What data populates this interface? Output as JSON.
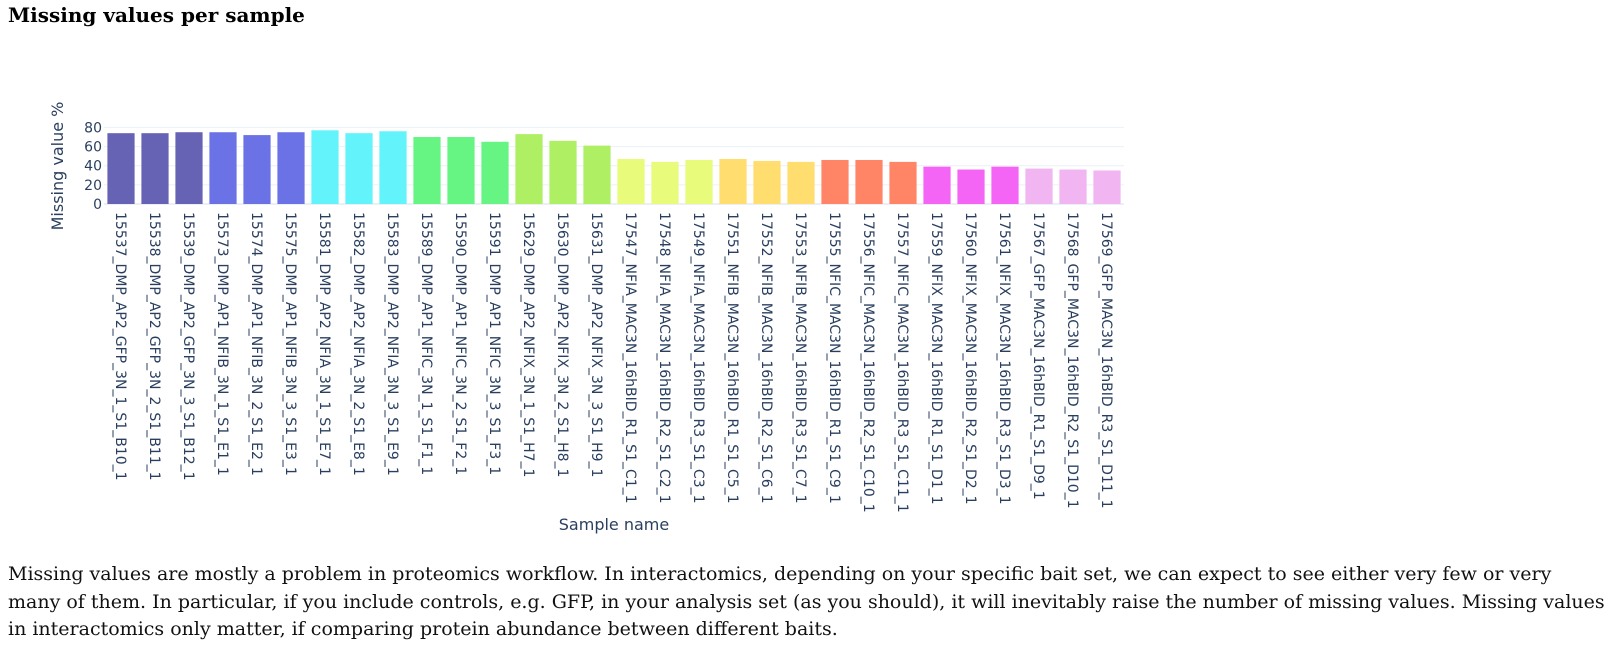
{
  "heading": "Missing values per sample",
  "chart_data": {
    "type": "bar",
    "categories": [
      "15537_DMP_AP2_GFP_3N_1_S1_B10_1",
      "15538_DMP_AP2_GFP_3N_2_S1_B11_1",
      "15539_DMP_AP2_GFP_3N_3_S1_B12_1",
      "15573_DMP_AP1_NFIB_3N_1_S1_E1_1",
      "15574_DMP_AP1_NFIB_3N_2_S1_E2_1",
      "15575_DMP_AP1_NFIB_3N_3_S1_E3_1",
      "15581_DMP_AP2_NFIA_3N_1_S1_E7_1",
      "15582_DMP_AP2_NFIA_3N_2_S1_E8_1",
      "15583_DMP_AP2_NFIA_3N_3_S1_E9_1",
      "15589_DMP_AP1_NFIC_3N_1_S1_F1_1",
      "15590_DMP_AP1_NFIC_3N_2_S1_F2_1",
      "15591_DMP_AP1_NFIC_3N_3_S1_F3_1",
      "15629_DMP_AP2_NFIX_3N_1_S1_H7_1",
      "15630_DMP_AP2_NFIX_3N_2_S1_H8_1",
      "15631_DMP_AP2_NFIX_3N_3_S1_H9_1",
      "17547_NFIA_MAC3N_16hBID_R1_S1_C1_1",
      "17548_NFIA_MAC3N_16hBID_R2_S1_C2_1",
      "17549_NFIA_MAC3N_16hBID_R3_S1_C3_1",
      "17551_NFIB_MAC3N_16hBID_R1_S1_C5_1",
      "17552_NFIB_MAC3N_16hBID_R2_S1_C6_1",
      "17553_NFIB_MAC3N_16hBID_R3_S1_C7_1",
      "17555_NFIC_MAC3N_16hBID_R1_S1_C9_1",
      "17556_NFIC_MAC3N_16hBID_R2_S1_C10_1",
      "17557_NFIC_MAC3N_16hBID_R3_S1_C11_1",
      "17559_NFIX_MAC3N_16hBID_R1_S1_D1_1",
      "17560_NFIX_MAC3N_16hBID_R2_S1_D2_1",
      "17561_NFIX_MAC3N_16hBID_R3_S1_D3_1",
      "17567_GFP_MAC3N_16hBID_R1_S1_D9_1",
      "17568_GFP_MAC3N_16hBID_R2_S1_D10_1",
      "17569_GFP_MAC3N_16hBID_R3_S1_D11_1"
    ],
    "values": [
      74,
      74,
      75,
      75,
      72,
      75,
      77,
      74,
      76,
      70,
      70,
      65,
      73,
      66,
      61,
      47,
      44,
      46,
      47,
      45,
      44,
      46,
      46,
      44,
      39,
      36,
      39,
      37,
      36,
      35
    ],
    "colors": [
      "#6763b4",
      "#6763b4",
      "#6763b4",
      "#6b72e6",
      "#6b72e6",
      "#6b72e6",
      "#62f3fb",
      "#62f3fb",
      "#62f3fb",
      "#66f582",
      "#66f582",
      "#66f582",
      "#aeef63",
      "#aeef63",
      "#aeef63",
      "#e8fb7a",
      "#e8fb7a",
      "#e8fb7a",
      "#ffdd6e",
      "#ffdd6e",
      "#ffdd6e",
      "#ff8566",
      "#ff8566",
      "#ff8566",
      "#f565f5",
      "#f565f5",
      "#f565f5",
      "#f1b5f1",
      "#f1b5f1",
      "#f1b5f1"
    ],
    "y_label": "Missing value %",
    "x_label": "Sample name",
    "ylim": [
      0,
      81.5
    ],
    "yticks": [
      0,
      20,
      40,
      60,
      80
    ],
    "grid": true
  },
  "paragraph": "Missing values are mostly a problem in proteomics workflow. In interactomics, depending on your specific bait set, we can expect to see either very few or very many of them. In particular, if you include controls, e.g. GFP, in your analysis set (as you should), it will inevitably raise the number of missing values. Missing values in interactomics only matter, if comparing protein abundance between different baits."
}
